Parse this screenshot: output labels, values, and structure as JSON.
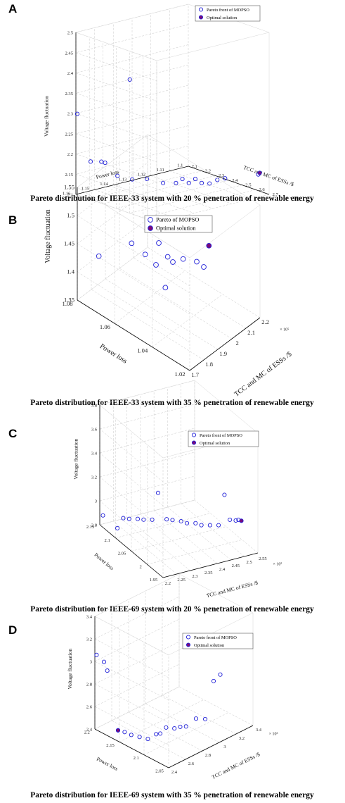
{
  "panels": [
    {
      "letter": "A",
      "caption": "Pareto distribution for IEEE-33 system with 20 % penetration of renewable energy",
      "legend": [
        "Pareto front of MOPSO",
        "Optimal solution"
      ],
      "axis_labels": {
        "x": "TCC and MC of ESSs /$",
        "y": "Power loss",
        "z": "Voltage fluctuation"
      },
      "x_exponent": "× 10⁵",
      "x_ticks": [
        "2.1",
        "2.2",
        "2.3",
        "2.4",
        "2.5",
        "2.6",
        "2.7"
      ],
      "y_ticks": [
        "1.1",
        "1.11",
        "1.12",
        "1.13",
        "1.14",
        "1.15",
        "1.16"
      ],
      "z_ticks": [
        "2.1",
        "2.15",
        "2.2",
        "2.25",
        "2.3",
        "2.35",
        "2.4",
        "2.45",
        "2.5"
      ]
    },
    {
      "letter": "B",
      "caption": "Pareto distribution for IEEE-33 system with 35 % penetration of renewable energy",
      "legend": [
        "Pareto of MOPSO",
        "Optimal solution"
      ],
      "axis_labels": {
        "x": "TCC and MC of ESSs /$",
        "y": "Power loss",
        "z": "Voltage fluctuation"
      },
      "x_exponent": "× 10⁵",
      "x_ticks": [
        "1.7",
        "1.8",
        "1.9",
        "2",
        "2.1",
        "2.2"
      ],
      "y_ticks": [
        "1.02",
        "1.04",
        "1.06",
        "1.08"
      ],
      "z_ticks": [
        "1.35",
        "1.4",
        "1.45",
        "1.5",
        "1.55"
      ]
    },
    {
      "letter": "C",
      "caption": "Pareto distribution for IEEE-69 system with 20 % penetration of renewable energy",
      "legend": [
        "Pareto front of MOPSO",
        "Optimal solution"
      ],
      "axis_labels": {
        "x": "TCC and MC of ESSs /$",
        "y": "Power loss",
        "z": "Voltage fluctuation"
      },
      "x_exponent": "× 10⁵",
      "x_ticks": [
        "2.2",
        "2.25",
        "2.3",
        "2.35",
        "2.4",
        "2.45",
        "2.5",
        "2.55"
      ],
      "y_ticks": [
        "1.95",
        "2",
        "2.05",
        "2.1",
        "2.15"
      ],
      "z_ticks": [
        "2.8",
        "3",
        "3.2",
        "3.4",
        "3.6",
        "3.8"
      ]
    },
    {
      "letter": "D",
      "caption": "Pareto distribution for IEEE-69 system with 35 % penetration of renewable energy",
      "legend": [
        "Pareto front of MOPSO",
        "Optimal solution"
      ],
      "axis_labels": {
        "x": "TCC and MC of ESSs /$",
        "y": "Power loss",
        "z": "Voltage fluctuation"
      },
      "x_exponent": "× 10⁵",
      "x_ticks": [
        "2.4",
        "2.6",
        "2.8",
        "3",
        "3.2",
        "3.4"
      ],
      "y_ticks": [
        "2.05",
        "2.1",
        "2.15",
        "2.2"
      ],
      "z_ticks": [
        "2.4",
        "2.6",
        "2.8",
        "3",
        "3.2",
        "3.4"
      ]
    }
  ],
  "colors": {
    "pareto_marker": "#2020d8",
    "optimal_fill": "#7a0a7a",
    "grid": "#c8c8c8"
  },
  "chart_data": [
    {
      "type": "scatter",
      "title": "Pareto distribution for IEEE-33 system with 20 % penetration of renewable energy",
      "xlabel": "TCC and MC of ESSs /$",
      "ylabel": "Power loss",
      "zlabel": "Voltage fluctuation",
      "xlim": [
        2.1,
        2.7
      ],
      "ylim": [
        1.1,
        1.16
      ],
      "zlim": [
        2.1,
        2.5
      ],
      "x_scale_note": "× 10⁵",
      "grid": true,
      "legend_position": "top-right",
      "series": [
        {
          "name": "Pareto front of MOPSO",
          "marker": "open-circle",
          "points": [
            [
              2.11,
              1.16,
              2.3
            ],
            [
              2.14,
              1.155,
              2.18
            ],
            [
              2.15,
              1.15,
              2.175
            ],
            [
              2.15,
              1.148,
              2.17
            ],
            [
              2.2,
              1.145,
              2.14
            ],
            [
              2.24,
              1.14,
              2.13
            ],
            [
              2.28,
              1.135,
              2.13
            ],
            [
              2.5,
              1.16,
              2.43
            ],
            [
              2.33,
              1.13,
              2.12
            ],
            [
              2.37,
              1.126,
              2.12
            ],
            [
              2.39,
              1.124,
              2.13
            ],
            [
              2.41,
              1.122,
              2.12
            ],
            [
              2.43,
              1.12,
              2.13
            ],
            [
              2.45,
              1.118,
              2.12
            ],
            [
              2.48,
              1.116,
              2.12
            ],
            [
              2.51,
              1.114,
              2.13
            ],
            [
              2.54,
              1.112,
              2.135
            ],
            [
              2.62,
              1.1,
              2.14
            ]
          ]
        },
        {
          "name": "Optimal solution",
          "marker": "filled-circle",
          "points": [
            [
              2.63,
              1.1,
              2.145
            ]
          ]
        }
      ]
    },
    {
      "type": "scatter",
      "title": "Pareto distribution for IEEE-33 system with 35 % penetration of renewable energy",
      "xlabel": "TCC and MC of ESSs /$",
      "ylabel": "Power loss",
      "zlabel": "Voltage fluctuation",
      "xlim": [
        1.7,
        2.2
      ],
      "ylim": [
        1.02,
        1.08
      ],
      "zlim": [
        1.35,
        1.55
      ],
      "x_scale_note": "× 10⁵",
      "grid": true,
      "legend_position": "top-right",
      "series": [
        {
          "name": "Pareto of MOPSO",
          "marker": "open-circle",
          "points": [
            [
              1.72,
              1.07,
              1.445
            ],
            [
              1.82,
              1.06,
              1.47
            ],
            [
              1.85,
              1.055,
              1.455
            ],
            [
              1.86,
              1.05,
              1.445
            ],
            [
              1.86,
              1.045,
              1.415
            ],
            [
              1.88,
              1.05,
              1.48
            ],
            [
              1.89,
              1.046,
              1.462
            ],
            [
              1.9,
              1.044,
              1.455
            ],
            [
              1.92,
              1.04,
              1.465
            ],
            [
              1.95,
              1.035,
              1.465
            ],
            [
              1.96,
              1.032,
              1.46
            ]
          ]
        },
        {
          "name": "Optimal solution",
          "marker": "filled-circle",
          "points": [
            [
              1.97,
              1.03,
              1.5
            ]
          ]
        }
      ]
    },
    {
      "type": "scatter",
      "title": "Pareto distribution for IEEE-69 system with 20 % penetration of renewable energy",
      "xlabel": "TCC and MC of ESSs /$",
      "ylabel": "Power loss",
      "zlabel": "Voltage fluctuation",
      "xlim": [
        2.2,
        2.55
      ],
      "ylim": [
        1.95,
        2.15
      ],
      "zlim": [
        2.8,
        3.8
      ],
      "x_scale_note": "× 10⁵",
      "grid": true,
      "legend_position": "top-right",
      "series": [
        {
          "name": "Pareto front of MOPSO",
          "marker": "open-circle",
          "points": [
            [
              2.2,
              2.14,
              2.9
            ],
            [
              2.23,
              2.12,
              2.82
            ],
            [
              2.24,
              2.11,
              2.92
            ],
            [
              2.25,
              2.1,
              2.93
            ],
            [
              2.27,
              2.09,
              2.94
            ],
            [
              2.28,
              2.08,
              2.95
            ],
            [
              2.3,
              2.07,
              2.96
            ],
            [
              2.31,
              2.06,
              3.2
            ],
            [
              2.33,
              2.05,
              2.99
            ],
            [
              2.34,
              2.04,
              3.0
            ],
            [
              2.36,
              2.03,
              3.0
            ],
            [
              2.37,
              2.02,
              3.0
            ],
            [
              2.39,
              2.01,
              3.01
            ],
            [
              2.4,
              2.0,
              3.01
            ],
            [
              2.42,
              1.99,
              3.02
            ],
            [
              2.44,
              1.98,
              3.03
            ],
            [
              2.45,
              1.97,
              3.3
            ],
            [
              2.47,
              1.97,
              3.08
            ],
            [
              2.48,
              1.96,
              3.09
            ],
            [
              2.49,
              1.96,
              3.09
            ]
          ]
        },
        {
          "name": "Optimal solution",
          "marker": "filled-circle",
          "points": [
            [
              2.495,
              1.955,
              3.09
            ]
          ]
        }
      ]
    },
    {
      "type": "scatter",
      "title": "Pareto distribution for IEEE-69 system with 35 % penetration of renewable energy",
      "xlabel": "TCC and MC of ESSs /$",
      "ylabel": "Power loss",
      "zlabel": "Voltage fluctuation",
      "xlim": [
        2.4,
        3.4
      ],
      "ylim": [
        2.05,
        2.2
      ],
      "zlim": [
        2.4,
        3.4
      ],
      "x_scale_note": "× 10⁵",
      "grid": true,
      "legend_position": "top-right",
      "series": [
        {
          "name": "Pareto front of MOPSO",
          "marker": "open-circle",
          "points": [
            [
              2.42,
              2.2,
              3.05
            ],
            [
              2.45,
              2.19,
              3.0
            ],
            [
              2.46,
              2.185,
              2.93
            ],
            [
              2.5,
              2.17,
              2.42
            ],
            [
              2.52,
              2.16,
              2.42
            ],
            [
              2.54,
              2.15,
              2.41
            ],
            [
              2.58,
              2.14,
              2.4
            ],
            [
              2.62,
              2.13,
              2.39
            ],
            [
              2.66,
              2.12,
              2.44
            ],
            [
              2.68,
              2.115,
              2.45
            ],
            [
              2.72,
              2.11,
              2.5
            ],
            [
              2.76,
              2.1,
              2.5
            ],
            [
              2.8,
              2.095,
              2.51
            ],
            [
              2.84,
              2.09,
              2.51
            ],
            [
              2.9,
              2.08,
              2.58
            ],
            [
              2.95,
              2.07,
              2.58
            ],
            [
              3.05,
              2.07,
              2.88
            ],
            [
              3.1,
              2.065,
              2.93
            ],
            [
              3.3,
              2.05,
              3.2
            ]
          ]
        },
        {
          "name": "Optimal solution",
          "marker": "filled-circle",
          "points": [
            [
              2.5,
              2.17,
              2.42
            ]
          ]
        }
      ]
    }
  ]
}
